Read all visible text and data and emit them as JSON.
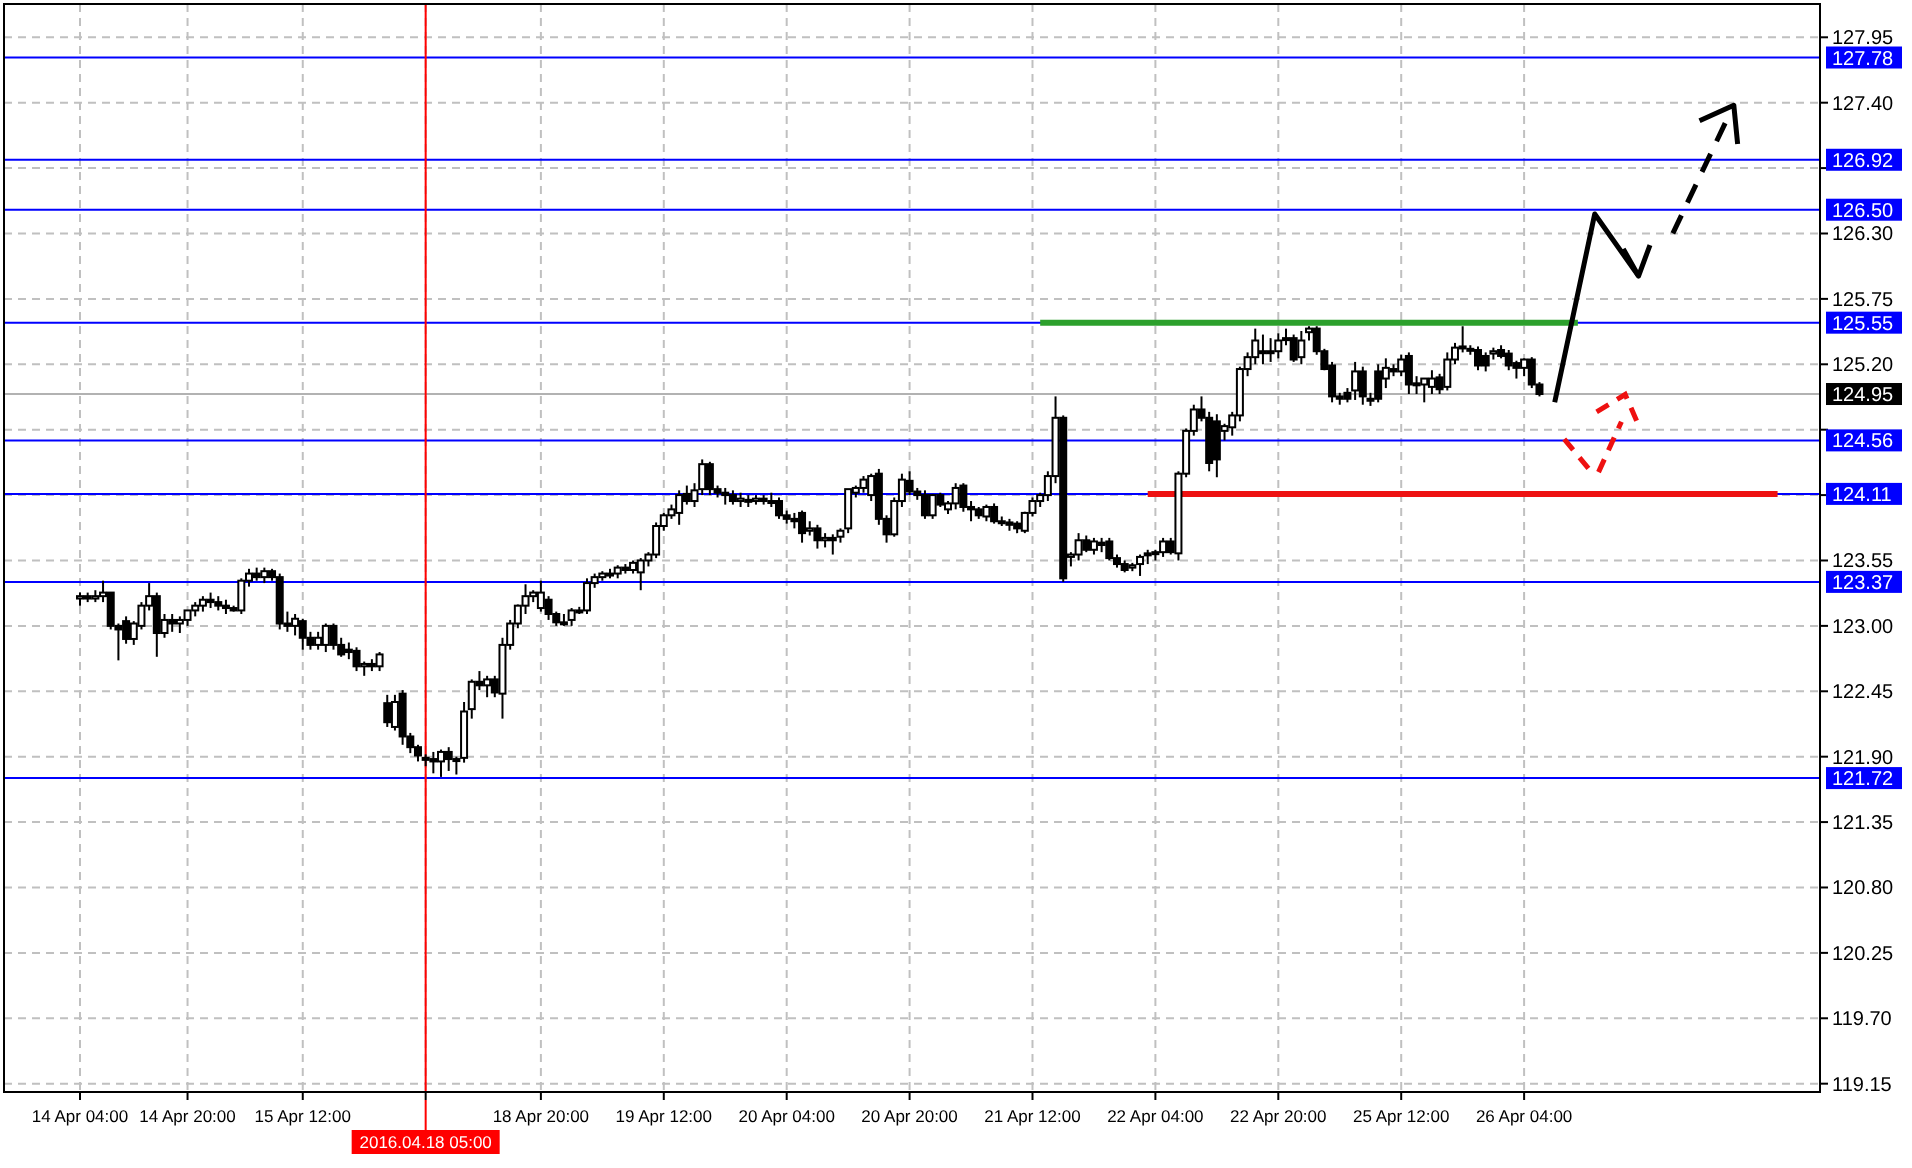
{
  "chart_data": {
    "type": "candlestick",
    "categories": [
      "14 Apr 04:00",
      null,
      null,
      null,
      null,
      null,
      null,
      null,
      null,
      null,
      null,
      null,
      null,
      null,
      "14 Apr 20:00",
      null,
      null,
      null,
      null,
      null,
      null,
      null,
      null,
      null,
      null,
      null,
      null,
      null,
      null,
      "15 Apr 12:00",
      null,
      null,
      null,
      null,
      null,
      null,
      null,
      null,
      null,
      null,
      null,
      null,
      null,
      null,
      null,
      "2016.04.18 05:00",
      null,
      null,
      null,
      null,
      null,
      null,
      null,
      null,
      null,
      null,
      null,
      null,
      null,
      null,
      "18 Apr 20:00",
      null,
      null,
      null,
      null,
      null,
      null,
      null,
      null,
      null,
      null,
      null,
      null,
      null,
      null,
      null,
      "19 Apr 12:00",
      null,
      null,
      null,
      null,
      null,
      null,
      null,
      null,
      null,
      null,
      null,
      null,
      null,
      null,
      null,
      "20 Apr 04:00",
      null,
      null,
      null,
      null,
      null,
      null,
      null,
      null,
      null,
      null,
      null,
      null,
      null,
      null,
      null,
      "20 Apr 20:00",
      null,
      null,
      null,
      null,
      null,
      null,
      null,
      null,
      null,
      null,
      null,
      null,
      null,
      null,
      null,
      "21 Apr 12:00",
      null,
      null,
      null,
      null,
      null,
      null,
      null,
      null,
      null,
      null,
      null,
      null,
      null,
      null,
      null,
      "22 Apr 04:00",
      null,
      null,
      null,
      null,
      null,
      null,
      null,
      null,
      null,
      null,
      null,
      null,
      null,
      null,
      null,
      "22 Apr 20:00",
      null,
      null,
      null,
      null,
      null,
      null,
      null,
      null,
      null,
      null,
      null,
      null,
      null,
      null,
      null,
      "25 Apr 12:00",
      null,
      null,
      null,
      null,
      null,
      null,
      null,
      null,
      null,
      null,
      null,
      null,
      null,
      null,
      null,
      "26 Apr 04:00",
      null,
      null,
      null,
      null,
      null,
      null,
      null,
      null,
      null,
      null,
      null,
      null,
      null,
      null,
      null,
      null,
      null,
      null,
      null,
      null,
      null,
      null,
      null,
      null,
      null,
      null,
      null,
      null,
      null,
      null,
      null,
      null,
      null,
      null,
      null,
      null,
      null,
      null
    ],
    "ohlc": [
      [
        123.23,
        123.28,
        123.17,
        123.25
      ],
      [
        123.25,
        123.28,
        123.2,
        123.23
      ],
      [
        123.23,
        123.3,
        123.2,
        123.25
      ],
      [
        123.25,
        123.38,
        123.2,
        123.28
      ],
      [
        123.28,
        123.28,
        122.97,
        123.0
      ],
      [
        123.0,
        123.02,
        122.71,
        122.97
      ],
      [
        123.04,
        123.08,
        122.85,
        122.89
      ],
      [
        122.89,
        123.04,
        122.84,
        123.02
      ],
      [
        123.0,
        123.2,
        122.97,
        123.17
      ],
      [
        123.17,
        123.36,
        123.13,
        123.25
      ],
      [
        123.25,
        123.28,
        122.74,
        122.94
      ],
      [
        122.94,
        123.1,
        122.9,
        123.05
      ],
      [
        123.05,
        123.1,
        122.95,
        123.02
      ],
      [
        123.02,
        123.08,
        122.94,
        123.05
      ],
      [
        123.05,
        123.13,
        123.0,
        123.13
      ],
      [
        123.13,
        123.2,
        123.08,
        123.17
      ],
      [
        123.17,
        123.25,
        123.12,
        123.22
      ],
      [
        123.22,
        123.28,
        123.15,
        123.2
      ],
      [
        123.2,
        123.25,
        123.13,
        123.17
      ],
      [
        123.17,
        123.22,
        123.1,
        123.15
      ],
      [
        123.15,
        123.17,
        123.12,
        123.13
      ],
      [
        123.13,
        123.4,
        123.1,
        123.38
      ],
      [
        123.38,
        123.48,
        123.33,
        123.44
      ],
      [
        123.44,
        123.49,
        123.38,
        123.41
      ],
      [
        123.41,
        123.49,
        123.36,
        123.46
      ],
      [
        123.46,
        123.48,
        123.38,
        123.41
      ],
      [
        123.41,
        123.44,
        122.97,
        123.02
      ],
      [
        123.02,
        123.12,
        122.95,
        123.0
      ],
      [
        123.0,
        123.1,
        122.92,
        123.06
      ],
      [
        123.04,
        123.06,
        122.8,
        122.9
      ],
      [
        122.9,
        122.95,
        122.8,
        122.84
      ],
      [
        122.84,
        122.95,
        122.8,
        122.9
      ],
      [
        122.84,
        123.02,
        122.78,
        123.0
      ],
      [
        123.0,
        123.02,
        122.8,
        122.84
      ],
      [
        122.84,
        122.9,
        122.74,
        122.76
      ],
      [
        122.8,
        122.86,
        122.72,
        122.78
      ],
      [
        122.79,
        122.82,
        122.62,
        122.66
      ],
      [
        122.66,
        122.7,
        122.58,
        122.68
      ],
      [
        122.68,
        122.72,
        122.62,
        122.66
      ],
      [
        122.66,
        122.78,
        122.62,
        122.76
      ],
      [
        122.35,
        122.42,
        122.15,
        122.19
      ],
      [
        122.15,
        122.42,
        122.12,
        122.36
      ],
      [
        122.43,
        122.46,
        122.0,
        122.07
      ],
      [
        122.07,
        122.1,
        121.93,
        121.98
      ],
      [
        121.98,
        122.0,
        121.86,
        121.91
      ],
      [
        121.89,
        121.92,
        121.82,
        121.88
      ],
      [
        121.88,
        121.94,
        121.76,
        121.86
      ],
      [
        121.86,
        121.96,
        121.73,
        121.94
      ],
      [
        121.94,
        121.98,
        121.78,
        121.88
      ],
      [
        121.87,
        121.9,
        121.75,
        121.88
      ],
      [
        121.89,
        122.36,
        121.85,
        122.28
      ],
      [
        122.3,
        122.55,
        122.22,
        122.53
      ],
      [
        122.53,
        122.62,
        122.46,
        122.5
      ],
      [
        122.5,
        122.58,
        122.4,
        122.55
      ],
      [
        122.55,
        122.58,
        122.4,
        122.44
      ],
      [
        122.43,
        122.9,
        122.22,
        122.84
      ],
      [
        122.84,
        123.05,
        122.8,
        123.02
      ],
      [
        123.02,
        123.18,
        122.98,
        123.17
      ],
      [
        123.17,
        123.35,
        123.1,
        123.25
      ],
      [
        123.25,
        123.3,
        123.2,
        123.28
      ],
      [
        123.15,
        123.38,
        123.12,
        123.28
      ],
      [
        123.22,
        123.25,
        123.05,
        123.1
      ],
      [
        123.1,
        123.12,
        123.0,
        123.03
      ],
      [
        123.03,
        123.1,
        123.0,
        123.02
      ],
      [
        123.05,
        123.15,
        123.0,
        123.13
      ],
      [
        123.13,
        123.16,
        123.1,
        123.13
      ],
      [
        123.13,
        123.4,
        123.1,
        123.36
      ],
      [
        123.36,
        123.44,
        123.32,
        123.41
      ],
      [
        123.41,
        123.46,
        123.38,
        123.44
      ],
      [
        123.44,
        123.48,
        123.4,
        123.43
      ],
      [
        123.44,
        123.51,
        123.4,
        123.49
      ],
      [
        123.49,
        123.52,
        123.44,
        123.47
      ],
      [
        123.47,
        123.55,
        123.44,
        123.53
      ],
      [
        123.45,
        123.57,
        123.3,
        123.55
      ],
      [
        123.55,
        123.62,
        123.5,
        123.6
      ],
      [
        123.6,
        123.87,
        123.57,
        123.84
      ],
      [
        123.84,
        123.95,
        123.8,
        123.93
      ],
      [
        123.93,
        124.02,
        123.9,
        123.98
      ],
      [
        123.95,
        124.14,
        123.85,
        124.1
      ],
      [
        124.11,
        124.18,
        124.02,
        124.05
      ],
      [
        124.05,
        124.2,
        124.0,
        124.14
      ],
      [
        124.15,
        124.4,
        124.1,
        124.36
      ],
      [
        124.36,
        124.38,
        124.1,
        124.15
      ],
      [
        124.15,
        124.18,
        124.08,
        124.12
      ],
      [
        124.12,
        124.16,
        124.02,
        124.1
      ],
      [
        124.1,
        124.14,
        124.02,
        124.05
      ],
      [
        124.05,
        124.12,
        124.0,
        124.07
      ],
      [
        124.06,
        124.1,
        124.0,
        124.05
      ],
      [
        124.05,
        124.1,
        124.02,
        124.07
      ],
      [
        124.07,
        124.1,
        124.02,
        124.05
      ],
      [
        124.05,
        124.12,
        124.0,
        124.04
      ],
      [
        124.05,
        124.08,
        123.9,
        123.93
      ],
      [
        123.93,
        123.97,
        123.86,
        123.9
      ],
      [
        123.9,
        123.95,
        123.82,
        123.88
      ],
      [
        123.95,
        123.97,
        123.7,
        123.78
      ],
      [
        123.8,
        123.88,
        123.76,
        123.82
      ],
      [
        123.82,
        123.85,
        123.65,
        123.72
      ],
      [
        123.72,
        123.78,
        123.66,
        123.74
      ],
      [
        123.74,
        123.77,
        123.6,
        123.72
      ],
      [
        123.75,
        123.82,
        123.7,
        123.8
      ],
      [
        123.82,
        124.15,
        123.78,
        124.15
      ],
      [
        124.12,
        124.18,
        124.08,
        124.16
      ],
      [
        124.16,
        124.26,
        124.12,
        124.23
      ],
      [
        124.1,
        124.28,
        124.05,
        124.26
      ],
      [
        124.28,
        124.32,
        123.85,
        123.9
      ],
      [
        123.9,
        123.93,
        123.7,
        123.77
      ],
      [
        123.77,
        124.08,
        123.75,
        124.05
      ],
      [
        124.05,
        124.28,
        124.0,
        124.23
      ],
      [
        124.22,
        124.3,
        124.1,
        124.13
      ],
      [
        124.13,
        124.16,
        124.06,
        124.1
      ],
      [
        124.1,
        124.14,
        123.9,
        123.93
      ],
      [
        123.93,
        124.11,
        123.9,
        124.1
      ],
      [
        124.1,
        124.12,
        124.0,
        124.02
      ],
      [
        123.98,
        124.05,
        123.94,
        124.03
      ],
      [
        124.03,
        124.2,
        123.98,
        124.16
      ],
      [
        124.18,
        124.2,
        123.96,
        124.0
      ],
      [
        124.0,
        124.05,
        123.88,
        123.98
      ],
      [
        123.98,
        124.0,
        123.9,
        123.93
      ],
      [
        123.92,
        124.02,
        123.88,
        124.0
      ],
      [
        124.0,
        124.03,
        123.86,
        123.88
      ],
      [
        123.88,
        123.92,
        123.84,
        123.87
      ],
      [
        123.87,
        123.9,
        123.8,
        123.85
      ],
      [
        123.86,
        123.88,
        123.78,
        123.82
      ],
      [
        123.8,
        123.96,
        123.78,
        123.95
      ],
      [
        123.95,
        124.08,
        123.92,
        124.05
      ],
      [
        124.05,
        124.12,
        124.0,
        124.1
      ],
      [
        124.1,
        124.3,
        124.05,
        124.26
      ],
      [
        124.26,
        124.93,
        124.2,
        124.75
      ],
      [
        124.75,
        124.77,
        123.37,
        123.4
      ],
      [
        123.58,
        123.62,
        123.5,
        123.6
      ],
      [
        123.6,
        123.78,
        123.55,
        123.72
      ],
      [
        123.72,
        123.76,
        123.62,
        123.64
      ],
      [
        123.64,
        123.74,
        123.6,
        123.71
      ],
      [
        123.7,
        123.74,
        123.62,
        123.68
      ],
      [
        123.71,
        123.74,
        123.55,
        123.57
      ],
      [
        123.57,
        123.6,
        123.49,
        123.52
      ],
      [
        123.52,
        123.55,
        123.45,
        123.47
      ],
      [
        123.49,
        123.53,
        123.46,
        123.51
      ],
      [
        123.52,
        123.6,
        123.42,
        123.58
      ],
      [
        123.6,
        123.64,
        123.52,
        123.61
      ],
      [
        123.61,
        123.64,
        123.55,
        123.62
      ],
      [
        123.62,
        123.74,
        123.58,
        123.71
      ],
      [
        123.71,
        123.74,
        123.6,
        123.62
      ],
      [
        123.61,
        124.3,
        123.55,
        124.28
      ],
      [
        124.28,
        124.66,
        124.25,
        124.64
      ],
      [
        124.64,
        124.86,
        124.6,
        124.82
      ],
      [
        124.82,
        124.93,
        124.72,
        124.75
      ],
      [
        124.75,
        124.8,
        124.3,
        124.37
      ],
      [
        124.72,
        124.78,
        124.25,
        124.4
      ],
      [
        124.64,
        124.7,
        124.56,
        124.68
      ],
      [
        124.67,
        124.8,
        124.6,
        124.77
      ],
      [
        124.77,
        125.18,
        124.72,
        125.16
      ],
      [
        125.16,
        125.3,
        125.1,
        125.26
      ],
      [
        125.26,
        125.5,
        125.2,
        125.4
      ],
      [
        125.31,
        125.45,
        125.2,
        125.31
      ],
      [
        125.31,
        125.42,
        125.22,
        125.31
      ],
      [
        125.31,
        125.46,
        125.25,
        125.4
      ],
      [
        125.42,
        125.5,
        125.36,
        125.42
      ],
      [
        125.42,
        125.45,
        125.22,
        125.24
      ],
      [
        125.26,
        125.48,
        125.2,
        125.4
      ],
      [
        125.47,
        125.52,
        125.4,
        125.5
      ],
      [
        125.5,
        125.52,
        125.28,
        125.31
      ],
      [
        125.31,
        125.33,
        125.15,
        125.16
      ],
      [
        125.19,
        125.22,
        124.88,
        124.93
      ],
      [
        124.93,
        124.96,
        124.86,
        124.91
      ],
      [
        124.96,
        125.0,
        124.88,
        124.91
      ],
      [
        124.98,
        125.22,
        124.9,
        125.14
      ],
      [
        125.14,
        125.18,
        124.86,
        124.93
      ],
      [
        124.91,
        124.96,
        124.85,
        124.9
      ],
      [
        125.14,
        125.2,
        124.88,
        124.91
      ],
      [
        125.08,
        125.25,
        125.0,
        125.17
      ],
      [
        125.16,
        125.2,
        125.1,
        125.14
      ],
      [
        125.14,
        125.28,
        125.1,
        125.24
      ],
      [
        125.27,
        125.3,
        124.95,
        125.03
      ],
      [
        125.03,
        125.1,
        124.95,
        125.04
      ],
      [
        125.03,
        125.08,
        124.88,
        125.08
      ],
      [
        125.01,
        125.15,
        124.95,
        125.08
      ],
      [
        125.09,
        125.12,
        124.95,
        124.99
      ],
      [
        125.01,
        125.3,
        124.98,
        125.24
      ],
      [
        125.24,
        125.38,
        125.2,
        125.34
      ],
      [
        125.34,
        125.52,
        125.3,
        125.35
      ],
      [
        125.33,
        125.36,
        125.28,
        125.32
      ],
      [
        125.32,
        125.35,
        125.15,
        125.19
      ],
      [
        125.27,
        125.3,
        125.14,
        125.19
      ],
      [
        125.29,
        125.34,
        125.24,
        125.31
      ],
      [
        125.32,
        125.36,
        125.25,
        125.27
      ],
      [
        125.29,
        125.32,
        125.15,
        125.19
      ],
      [
        125.21,
        125.23,
        125.08,
        125.17
      ],
      [
        125.17,
        125.25,
        125.1,
        125.24
      ],
      [
        125.24,
        125.26,
        125.0,
        125.03
      ],
      [
        125.03,
        125.05,
        124.93,
        124.95
      ],
      null,
      null,
      null,
      null,
      null,
      null,
      null,
      null,
      null,
      null,
      null,
      null,
      null,
      null,
      null,
      null,
      null,
      null,
      null,
      null,
      null,
      null,
      null,
      null,
      null,
      null,
      null,
      null,
      null,
      null,
      null,
      null,
      null,
      null,
      null,
      null
    ],
    "series": [
      {
        "type": "line",
        "color": "#2ca02c",
        "values": [
          null,
          null,
          null,
          null,
          null,
          null,
          null,
          null,
          null,
          null,
          null,
          null,
          null,
          null,
          null,
          null,
          null,
          null,
          null,
          null,
          null,
          null,
          null,
          null,
          null,
          null,
          null,
          null,
          null,
          null,
          null,
          null,
          null,
          null,
          null,
          null,
          null,
          null,
          null,
          null,
          null,
          null,
          null,
          null,
          null,
          null,
          null,
          null,
          null,
          null,
          null,
          null,
          null,
          null,
          null,
          null,
          null,
          null,
          null,
          null,
          null,
          null,
          null,
          null,
          null,
          null,
          null,
          null,
          null,
          null,
          null,
          null,
          null,
          null,
          null,
          null,
          null,
          null,
          null,
          null,
          null,
          null,
          null,
          null,
          null,
          null,
          null,
          null,
          null,
          null,
          null,
          null,
          null,
          null,
          null,
          null,
          null,
          null,
          null,
          null,
          null,
          null,
          null,
          null,
          null,
          null,
          null,
          null,
          null,
          null,
          null,
          null,
          null,
          null,
          null,
          null,
          null,
          null,
          null,
          null,
          null,
          null,
          null,
          null,
          null,
          125.55,
          125.55,
          125.55,
          125.55,
          125.55,
          125.55,
          125.55,
          125.55,
          125.55,
          125.55,
          125.55,
          125.55,
          125.55,
          125.55,
          125.55,
          125.55,
          125.55,
          125.55,
          125.55,
          125.55,
          125.55,
          125.55,
          125.55,
          125.55,
          125.55,
          125.55,
          125.55,
          125.55,
          125.55,
          125.55,
          125.55,
          125.55,
          125.55,
          125.55,
          125.55,
          125.55,
          125.55,
          125.55,
          125.55,
          125.55,
          125.55,
          125.55,
          125.55,
          125.55,
          125.55,
          125.55,
          125.55,
          125.55,
          125.55,
          125.55,
          125.55,
          125.55,
          125.55,
          125.55,
          125.55,
          125.55,
          125.55,
          125.55,
          125.55,
          125.55,
          125.55,
          125.55,
          125.55,
          125.55,
          125.55,
          125.55,
          125.55,
          125.55,
          125.55,
          125.55,
          125.55,
          null,
          null,
          null,
          null,
          null,
          null,
          null,
          null,
          null,
          null,
          null,
          null,
          null,
          null,
          null,
          null,
          null,
          null,
          null,
          null,
          null,
          null,
          null,
          null,
          null,
          null,
          null,
          null,
          null,
          null,
          null
        ]
      },
      {
        "type": "line",
        "color": "#ee1111",
        "values": [
          null,
          null,
          null,
          null,
          null,
          null,
          null,
          null,
          null,
          null,
          null,
          null,
          null,
          null,
          null,
          null,
          null,
          null,
          null,
          null,
          null,
          null,
          null,
          null,
          null,
          null,
          null,
          null,
          null,
          null,
          null,
          null,
          null,
          null,
          null,
          null,
          null,
          null,
          null,
          null,
          null,
          null,
          null,
          null,
          null,
          null,
          null,
          null,
          null,
          null,
          null,
          null,
          null,
          null,
          null,
          null,
          null,
          null,
          null,
          null,
          null,
          null,
          null,
          null,
          null,
          null,
          null,
          null,
          null,
          null,
          null,
          null,
          null,
          null,
          null,
          null,
          null,
          null,
          null,
          null,
          null,
          null,
          null,
          null,
          null,
          null,
          null,
          null,
          null,
          null,
          null,
          null,
          null,
          null,
          null,
          null,
          null,
          null,
          null,
          null,
          null,
          null,
          null,
          null,
          null,
          null,
          null,
          null,
          null,
          null,
          null,
          null,
          null,
          null,
          null,
          null,
          null,
          null,
          null,
          null,
          null,
          null,
          null,
          null,
          null,
          null,
          null,
          null,
          null,
          null,
          null,
          null,
          null,
          null,
          null,
          null,
          null,
          null,
          null,
          124.11,
          124.11,
          124.11,
          124.11,
          124.11,
          124.11,
          124.11,
          124.11,
          124.11,
          124.11,
          124.11,
          124.11,
          124.11,
          124.11,
          124.11,
          124.11,
          124.11,
          124.11,
          124.11,
          124.11,
          124.11,
          124.11,
          124.11,
          124.11,
          124.11,
          124.11,
          124.11,
          124.11,
          124.11,
          124.11,
          124.11,
          124.11,
          124.11,
          124.11,
          124.11,
          124.11,
          124.11,
          124.11,
          124.11,
          124.11,
          124.11,
          124.11,
          124.11,
          124.11,
          124.11,
          124.11,
          124.11,
          124.11,
          124.11,
          124.11,
          124.11,
          124.11,
          124.11,
          124.11,
          124.11,
          124.11,
          124.11,
          124.11,
          124.11,
          124.11,
          124.11,
          124.11,
          124.11,
          124.11,
          124.11,
          124.11,
          124.11,
          124.11,
          124.11,
          124.11,
          124.11,
          124.11,
          124.11,
          124.11,
          124.11,
          124.11,
          124.11,
          124.11,
          124.11,
          124.11,
          124.11,
          124.11,
          124.11,
          null,
          null,
          null,
          null,
          null
        ]
      }
    ],
    "ylim": [
      119.08,
      128.23
    ],
    "yticks": [
      {
        "value": 127.95,
        "label": "127.95"
      },
      {
        "value": 127.4,
        "label": "127.40"
      },
      {
        "value": 126.85,
        "label": null
      },
      {
        "value": 126.3,
        "label": "126.30"
      },
      {
        "value": 125.75,
        "label": "125.75"
      },
      {
        "value": 125.2,
        "label": "125.20"
      },
      {
        "value": 124.65,
        "label": null
      },
      {
        "value": 124.1,
        "label": null
      },
      {
        "value": 123.55,
        "label": "123.55"
      },
      {
        "value": 123.0,
        "label": "123.00"
      },
      {
        "value": 122.45,
        "label": "122.45"
      },
      {
        "value": 121.9,
        "label": "121.90"
      },
      {
        "value": 121.35,
        "label": "121.35"
      },
      {
        "value": 120.8,
        "label": "120.80"
      },
      {
        "value": 120.25,
        "label": "120.25"
      },
      {
        "value": 119.7,
        "label": "119.70"
      },
      {
        "value": 119.15,
        "label": "119.15"
      }
    ],
    "grid": true,
    "ref_lines": [
      {
        "axis": "y",
        "value": 127.78,
        "label": "127.78",
        "color": "#0000ff"
      },
      {
        "axis": "y",
        "value": 126.92,
        "label": "126.92",
        "color": "#0000ff"
      },
      {
        "axis": "y",
        "value": 126.5,
        "label": "126.50",
        "color": "#0000ff"
      },
      {
        "axis": "y",
        "value": 125.55,
        "label": "125.55",
        "color": "#0000ff"
      },
      {
        "axis": "y",
        "value": 124.95,
        "label": "124.95",
        "color": "#000000"
      },
      {
        "axis": "y",
        "value": 124.56,
        "label": "124.56",
        "color": "#0000ff"
      },
      {
        "axis": "y",
        "value": 124.11,
        "label": "124.11",
        "color": "#0000ff"
      },
      {
        "axis": "y",
        "value": 123.37,
        "label": "123.37",
        "color": "#0000ff"
      },
      {
        "axis": "y",
        "value": 121.72,
        "label": "121.72",
        "color": "#0000ff"
      },
      {
        "axis": "x",
        "value": "2016.04.18 05:00",
        "color": "#ff0000"
      }
    ]
  }
}
